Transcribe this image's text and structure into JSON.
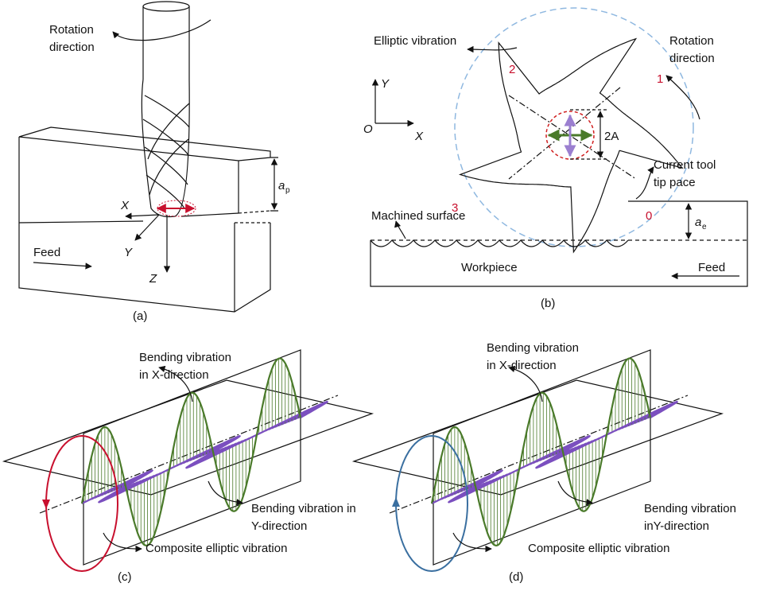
{
  "panel_a": {
    "label": "(a)",
    "rotation": [
      "Rotation",
      "direction"
    ],
    "depth": {
      "symbol": "a",
      "sub": "p"
    },
    "axes": {
      "x": "X",
      "y": "Y",
      "z": "Z"
    },
    "feed": "Feed"
  },
  "panel_b": {
    "label": "(b)",
    "elliptic": "Elliptic vibration",
    "rotation": [
      "Rotation",
      "direction"
    ],
    "axes": {
      "y": "Y",
      "o": "O",
      "x": "X"
    },
    "teeth": [
      "1",
      "2",
      "3",
      "0"
    ],
    "amplitude": "2A",
    "tip": [
      "Current tool",
      "tip pace"
    ],
    "machined": "Machined surface",
    "depth": {
      "symbol": "a",
      "sub": "e"
    },
    "workpiece": "Workpiece",
    "feed": "Feed"
  },
  "panel_c": {
    "label": "(c)",
    "bend_x": [
      "Bending vibration",
      "in X-direction"
    ],
    "bend_y": [
      "Bending vibration in",
      "Y-direction"
    ],
    "composite": "Composite elliptic vibration"
  },
  "panel_d": {
    "label": "(d)",
    "bend_x": [
      "Bending vibration",
      "in X-direction"
    ],
    "bend_y": [
      "Bending vibration",
      "inY-direction"
    ],
    "composite": "Composite elliptic vibration"
  }
}
